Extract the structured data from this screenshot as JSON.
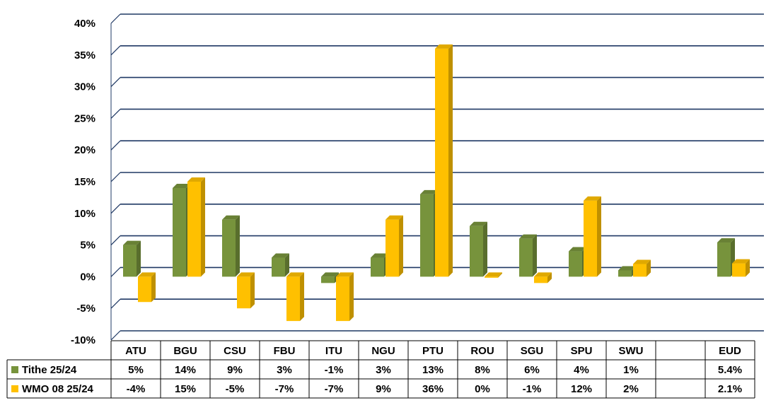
{
  "chart_data": {
    "type": "bar",
    "title": "",
    "xlabel": "",
    "ylabel": "",
    "ylim": [
      -10,
      40
    ],
    "y_ticks": [
      40,
      35,
      30,
      25,
      20,
      15,
      10,
      5,
      0,
      -5,
      -10
    ],
    "y_tick_labels": [
      "40%",
      "35%",
      "30%",
      "25%",
      "20%",
      "15%",
      "10%",
      "5%",
      "0%",
      "-5%",
      "-10%"
    ],
    "grid": true,
    "legend": "bottom-left data table",
    "categories": [
      "ATU",
      "BGU",
      "CSU",
      "FBU",
      "ITU",
      "NGU",
      "PTU",
      "ROU",
      "SGU",
      "SPU",
      "SWU",
      "",
      "EUD"
    ],
    "series": [
      {
        "name": "Tithe 25/24",
        "color": "#77933c",
        "values": [
          5,
          14,
          9,
          3,
          -1,
          3,
          13,
          8,
          6,
          4,
          1,
          null,
          5.4
        ],
        "labels": [
          "5%",
          "14%",
          "9%",
          "3%",
          "-1%",
          "3%",
          "13%",
          "8%",
          "6%",
          "4%",
          "1%",
          "",
          "5.4%"
        ]
      },
      {
        "name": "WMO 08 25/24",
        "color": "#ffc000",
        "values": [
          -4,
          15,
          -5,
          -7,
          -7,
          9,
          36,
          0,
          -1,
          12,
          2,
          null,
          2.1
        ],
        "labels": [
          "-4%",
          "15%",
          "-5%",
          "-7%",
          "-7%",
          "9%",
          "36%",
          "0%",
          "-1%",
          "12%",
          "2%",
          "",
          "2.1%"
        ]
      }
    ]
  }
}
